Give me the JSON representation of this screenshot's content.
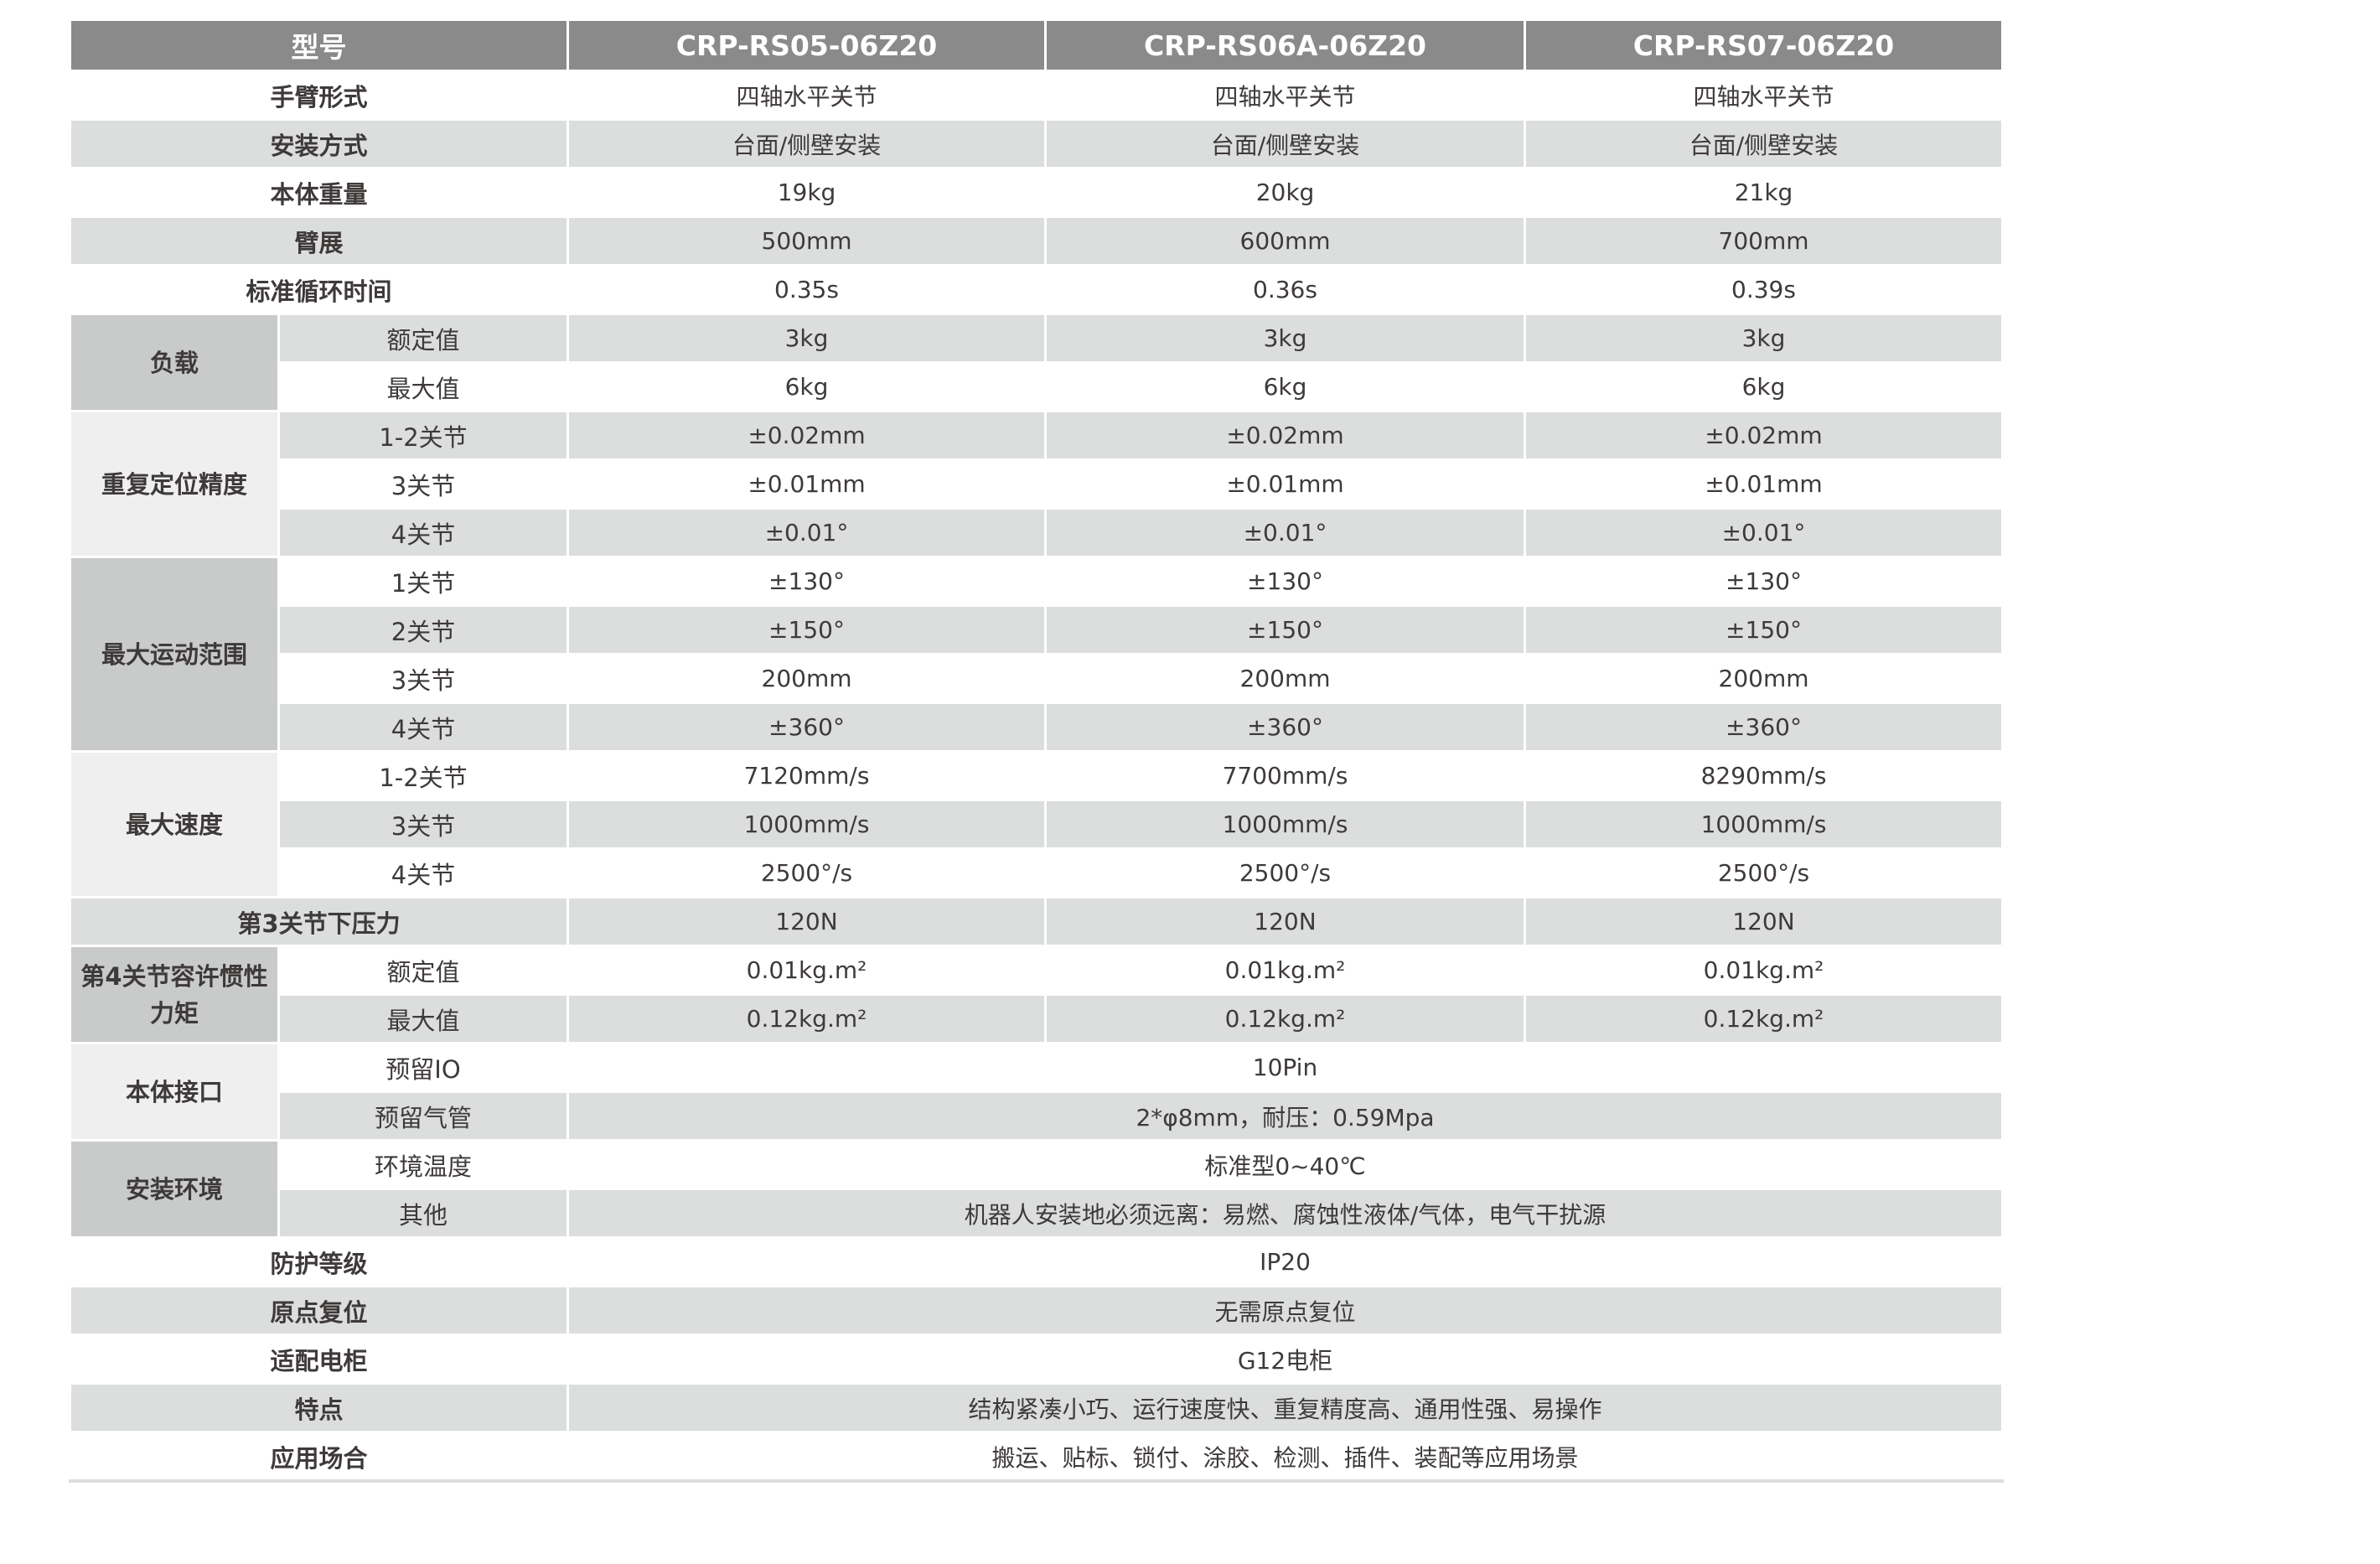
{
  "header": {
    "label": "型号",
    "models": [
      "CRP-RS05-06Z20",
      "CRP-RS06A-06Z20",
      "CRP-RS07-06Z20"
    ]
  },
  "rows": [
    {
      "label": "手臂形式",
      "values": [
        "四轴水平关节",
        "四轴水平关节",
        "四轴水平关节"
      ]
    },
    {
      "label": "安装方式",
      "values": [
        "台面/侧壁安装",
        "台面/侧壁安装",
        "台面/侧壁安装"
      ]
    },
    {
      "label": "本体重量",
      "values": [
        "19kg",
        "20kg",
        "21kg"
      ]
    },
    {
      "label": "臂展",
      "values": [
        "500mm",
        "600mm",
        "700mm"
      ]
    },
    {
      "label": "标准循环时间",
      "values": [
        "0.35s",
        "0.36s",
        "0.39s"
      ]
    },
    {
      "label": "负载",
      "shade": "dark",
      "rows": [
        {
          "sub": "额定值",
          "values": [
            "3kg",
            "3kg",
            "3kg"
          ]
        },
        {
          "sub": "最大值",
          "values": [
            "6kg",
            "6kg",
            "6kg"
          ]
        }
      ]
    },
    {
      "label": "重复定位精度",
      "shade": "light",
      "rows": [
        {
          "sub": "1-2关节",
          "values": [
            "±0.02mm",
            "±0.02mm",
            "±0.02mm"
          ]
        },
        {
          "sub": "3关节",
          "values": [
            "±0.01mm",
            "±0.01mm",
            "±0.01mm"
          ]
        },
        {
          "sub": "4关节",
          "values": [
            "±0.01°",
            "±0.01°",
            "±0.01°"
          ]
        }
      ]
    },
    {
      "label": "最大运动范围",
      "shade": "dark",
      "rows": [
        {
          "sub": "1关节",
          "values": [
            "±130°",
            "±130°",
            "±130°"
          ]
        },
        {
          "sub": "2关节",
          "values": [
            "±150°",
            "±150°",
            "±150°"
          ]
        },
        {
          "sub": "3关节",
          "values": [
            "200mm",
            "200mm",
            "200mm"
          ]
        },
        {
          "sub": "4关节",
          "values": [
            "±360°",
            "±360°",
            "±360°"
          ]
        }
      ]
    },
    {
      "label": "最大速度",
      "shade": "light",
      "rows": [
        {
          "sub": "1-2关节",
          "values": [
            "7120mm/s",
            "7700mm/s",
            "8290mm/s"
          ]
        },
        {
          "sub": "3关节",
          "values": [
            "1000mm/s",
            "1000mm/s",
            "1000mm/s"
          ]
        },
        {
          "sub": "4关节",
          "values": [
            "2500°/s",
            "2500°/s",
            "2500°/s"
          ]
        }
      ]
    },
    {
      "label": "第3关节下压力",
      "values": [
        "120N",
        "120N",
        "120N"
      ]
    },
    {
      "label": "第4关节容许惯性力矩",
      "shade": "dark",
      "rows": [
        {
          "sub": "额定值",
          "values": [
            "0.01kg.m²",
            "0.01kg.m²",
            "0.01kg.m²"
          ]
        },
        {
          "sub": "最大值",
          "values": [
            "0.12kg.m²",
            "0.12kg.m²",
            "0.12kg.m²"
          ]
        }
      ]
    },
    {
      "label": "本体接口",
      "shade": "light",
      "rows": [
        {
          "sub": "预留IO",
          "value": "10Pin"
        },
        {
          "sub": "预留气管",
          "value": "2*φ8mm，耐压：0.59Mpa"
        }
      ]
    },
    {
      "label": "安装环境",
      "shade": "dark",
      "rows": [
        {
          "sub": "环境温度",
          "value": "标准型0~40℃"
        },
        {
          "sub": "其他",
          "value": "机器人安装地必须远离：易燃、腐蚀性液体/气体，电气干扰源"
        }
      ]
    },
    {
      "label": "防护等级",
      "value": "IP20"
    },
    {
      "label": "原点复位",
      "value": "无需原点复位"
    },
    {
      "label": "适配电柜",
      "value": "G12电柜"
    },
    {
      "label": "特点",
      "value": "结构紧凑小巧、运行速度快、重复精度高、通用性强、易操作"
    },
    {
      "label": "应用场合",
      "value": "搬运、贴标、锁付、涂胶、检测、插件、装配等应用场景"
    }
  ],
  "colors": {
    "header_bg": "#8a8a8a",
    "stripe": "#dcdddd",
    "group_dark": "#c9caca",
    "group_light": "#efefef",
    "text": "#3e3a39"
  }
}
